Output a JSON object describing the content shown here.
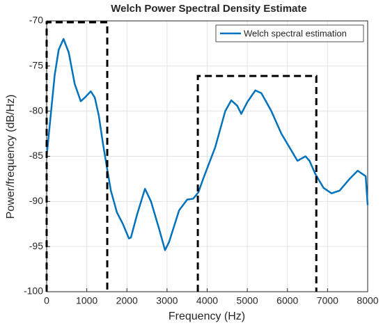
{
  "chart_data": {
    "type": "line",
    "title": "Welch Power Spectral Density Estimate",
    "xlabel": "Frequency (Hz)",
    "ylabel": "Power/frequency (dB/Hz)",
    "x": [
      0,
      100,
      200,
      300,
      420,
      550,
      700,
      850,
      950,
      1100,
      1200,
      1300,
      1400,
      1500,
      1600,
      1750,
      1900,
      2050,
      2100,
      2250,
      2450,
      2600,
      2800,
      2950,
      3050,
      3300,
      3500,
      3650,
      3780,
      3900,
      4200,
      4450,
      4600,
      4750,
      4850,
      5000,
      5200,
      5350,
      5600,
      5850,
      6050,
      6250,
      6450,
      6550,
      6700,
      6900,
      7100,
      7300,
      7550,
      7750,
      7950,
      8000
    ],
    "series": [
      {
        "name": "Welch spectral estimation",
        "color": "#0072bd",
        "values": [
          -85,
          -80.5,
          -76,
          -73.2,
          -72,
          -73.5,
          -77,
          -78.9,
          -78.5,
          -77.8,
          -78.5,
          -80.5,
          -83.5,
          -86.2,
          -88.8,
          -91.2,
          -92.5,
          -94.1,
          -94,
          -91.5,
          -88.6,
          -90,
          -93,
          -95.4,
          -94.5,
          -91,
          -89.8,
          -89.7,
          -89,
          -87.5,
          -84,
          -80,
          -78.8,
          -79.4,
          -80.3,
          -79,
          -77.7,
          -78,
          -80,
          -82.5,
          -84,
          -85.5,
          -85,
          -85.5,
          -87,
          -88.5,
          -89.1,
          -88.8,
          -87.5,
          -86.6,
          -87.2,
          -90.4
        ]
      }
    ],
    "regions": [
      {
        "x": [
          0,
          1510
        ],
        "top": -70.15
      },
      {
        "x": [
          3767,
          6720
        ],
        "top": -76.1
      }
    ],
    "xlim": [
      0,
      8000
    ],
    "xticks": [
      0,
      1000,
      2000,
      3000,
      4000,
      5000,
      6000,
      7000,
      8000
    ],
    "ylim": [
      -100,
      -70
    ],
    "yticks": [
      -100,
      -95,
      -90,
      -85,
      -80,
      -75,
      -70
    ],
    "grid": true,
    "legend": "upper right"
  }
}
